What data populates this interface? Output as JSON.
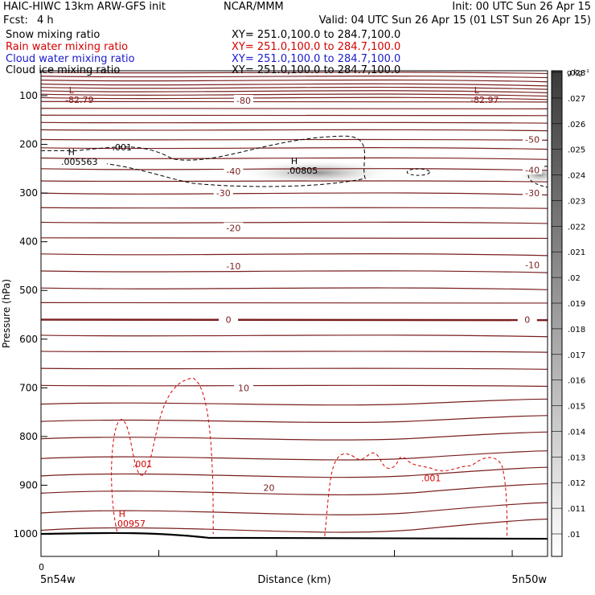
{
  "header": {
    "model_line": "HAIC-HIWC 13km ARW-GFS init",
    "org": "NCAR/MMM",
    "init": "Init: 00 UTC Sun 26 Apr 15",
    "fcst_label": "Fcst:",
    "fcst_value": "4 h",
    "valid": "Valid: 04 UTC Sun 26 Apr 15 (01 LST Sun 26 Apr 15)",
    "fields": [
      {
        "name": "Snow mixing ratio",
        "xy": "XY= 251.0,100.0 to 284.7,100.0",
        "color": "#000000"
      },
      {
        "name": "Rain water mixing ratio",
        "xy": "XY= 251.0,100.0 to 284.7,100.0",
        "color": "#d40000"
      },
      {
        "name": "Cloud water mixing ratio",
        "xy": "XY= 251.0,100.0 to 284.7,100.0",
        "color": "#1a1acc"
      },
      {
        "name": "Cloud ice mixing ratio",
        "xy": "XY= 251.0,100.0 to 284.7,100.0",
        "color": "#000000"
      }
    ]
  },
  "chart_data": {
    "type": "cross-section",
    "ylabel": "Pressure (hPa)",
    "xlabel": "Distance (km)",
    "x_start_label": "0",
    "left_lon": "5n54w",
    "right_lon": "5n50w",
    "ylim": [
      1050,
      50
    ],
    "yticks": [
      100,
      200,
      300,
      400,
      500,
      600,
      700,
      800,
      900,
      1000
    ],
    "colorbar": {
      "unit": "g kg⁻¹",
      "ticks": [
        ".01",
        ".011",
        ".012",
        ".013",
        ".014",
        ".015",
        ".016",
        ".017",
        ".018",
        ".019",
        ".02",
        ".021",
        ".022",
        ".023",
        ".024",
        ".025",
        ".026",
        ".027",
        ".028"
      ]
    },
    "temperature_labels": [
      {
        "text": "-80",
        "x_frac": 0.4,
        "p": 110
      },
      {
        "text": "-50",
        "x_frac": 0.97,
        "p": 190
      },
      {
        "text": "-40",
        "x_frac": 0.38,
        "p": 255
      },
      {
        "text": "-40",
        "x_frac": 0.97,
        "p": 253
      },
      {
        "text": "-30",
        "x_frac": 0.36,
        "p": 300
      },
      {
        "text": "-30",
        "x_frac": 0.97,
        "p": 300
      },
      {
        "text": "-20",
        "x_frac": 0.38,
        "p": 372
      },
      {
        "text": "-10",
        "x_frac": 0.38,
        "p": 450
      },
      {
        "text": "-10",
        "x_frac": 0.97,
        "p": 448
      },
      {
        "text": "0",
        "x_frac": 0.37,
        "p": 560
      },
      {
        "text": "0",
        "x_frac": 0.96,
        "p": 560
      },
      {
        "text": "10",
        "x_frac": 0.4,
        "p": 700
      },
      {
        "text": "20",
        "x_frac": 0.45,
        "p": 905
      }
    ],
    "extrema": [
      {
        "type": "L",
        "value": "-82.79",
        "x_frac": 0.06,
        "p": 95,
        "color": "#8b1a1a"
      },
      {
        "type": "L",
        "value": "-82.97",
        "x_frac": 0.86,
        "p": 95,
        "color": "#8b1a1a"
      },
      {
        "type": "H",
        "value": ".005563",
        "x_frac": 0.06,
        "p": 222,
        "color": "#000000"
      },
      {
        "type": "H",
        "value": ".00805",
        "x_frac": 0.5,
        "p": 240,
        "color": "#000000"
      },
      {
        "type": "H",
        "value": ".00957",
        "x_frac": 0.16,
        "p": 965,
        "color": "#d40000"
      }
    ],
    "contour_labels": [
      {
        "text": ".001",
        "x_frac": 0.16,
        "p": 212,
        "color": "#000000"
      },
      {
        "text": ".001",
        "x_frac": 0.2,
        "p": 863,
        "color": "#d40000"
      },
      {
        "text": ".001",
        "x_frac": 0.77,
        "p": 892,
        "color": "#d40000"
      }
    ]
  }
}
